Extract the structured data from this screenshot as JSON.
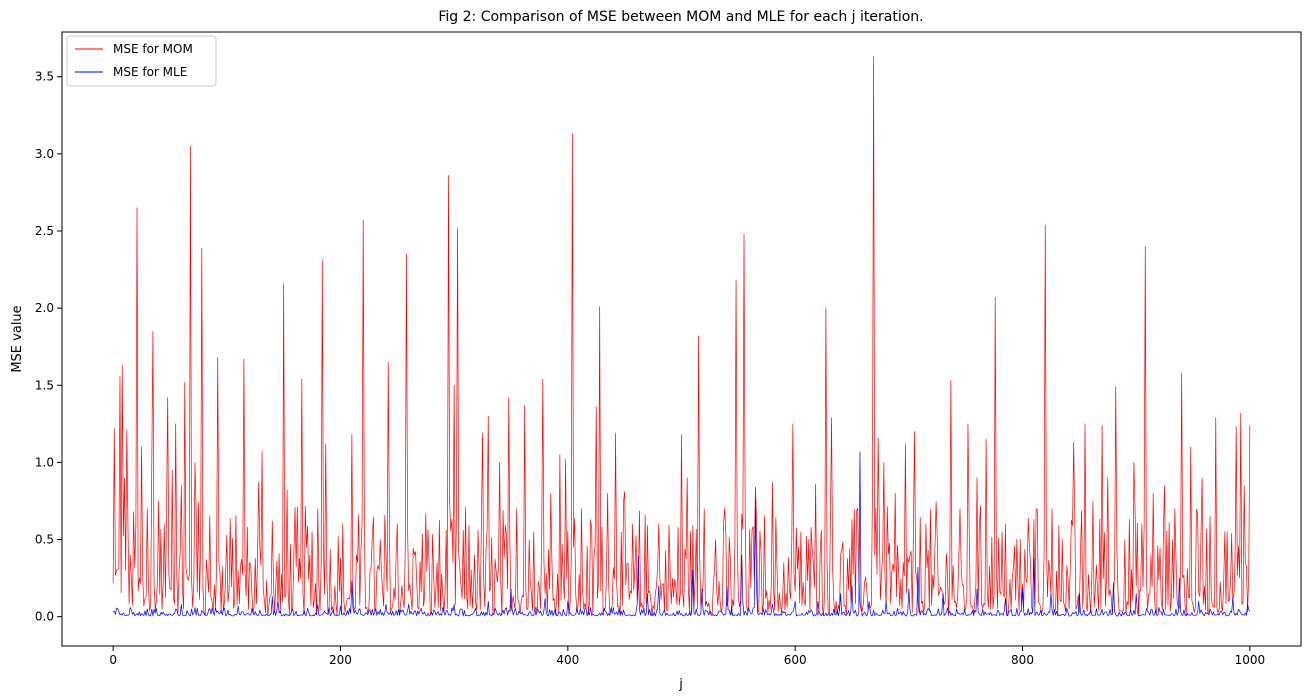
{
  "chart_data": {
    "type": "line",
    "title": "Fig 2: Comparison of MSE between MOM and MLE for each j iteration.",
    "xlabel": "j",
    "ylabel": "MSE value",
    "xlim": [
      -45,
      1045
    ],
    "ylim": [
      -0.19,
      3.79
    ],
    "xticks": [
      0,
      200,
      400,
      600,
      800,
      1000
    ],
    "xtick_labels": [
      "0",
      "200",
      "400",
      "600",
      "800",
      "1000"
    ],
    "yticks": [
      0.0,
      0.5,
      1.0,
      1.5,
      2.0,
      2.5,
      3.0,
      3.5
    ],
    "ytick_labels": [
      "0.0",
      "0.5",
      "1.0",
      "1.5",
      "2.0",
      "2.5",
      "3.0",
      "3.5"
    ],
    "grid": false,
    "legend_position": "top-left",
    "series": [
      {
        "name": "MSE for MOM",
        "color": "#ff0000",
        "baseline": 0.22,
        "peaks": [
          [
            1,
            1.22
          ],
          [
            3,
            0.3
          ],
          [
            6,
            1.56
          ],
          [
            8,
            1.63
          ],
          [
            10,
            0.9
          ],
          [
            12,
            1.21
          ],
          [
            16,
            0.25
          ],
          [
            20,
            0.6
          ],
          [
            21,
            2.65
          ],
          [
            25,
            1.1
          ],
          [
            30,
            0.7
          ],
          [
            34,
            1.0
          ],
          [
            35,
            1.85
          ],
          [
            40,
            0.75
          ],
          [
            45,
            0.6
          ],
          [
            48,
            1.42
          ],
          [
            52,
            0.95
          ],
          [
            55,
            1.25
          ],
          [
            60,
            0.85
          ],
          [
            63,
            1.52
          ],
          [
            68,
            3.05
          ],
          [
            72,
            1.0
          ],
          [
            75,
            0.74
          ],
          [
            78,
            2.39
          ],
          [
            85,
            0.65
          ],
          [
            92,
            1.68
          ],
          [
            100,
            0.53
          ],
          [
            105,
            0.25
          ],
          [
            110,
            0.3
          ],
          [
            115,
            1.67
          ],
          [
            120,
            0.35
          ],
          [
            128,
            0.87
          ],
          [
            131,
            1.07
          ],
          [
            140,
            0.62
          ],
          [
            150,
            2.16
          ],
          [
            153,
            0.82
          ],
          [
            160,
            0.5
          ],
          [
            166,
            1.54
          ],
          [
            170,
            0.45
          ],
          [
            175,
            0.55
          ],
          [
            180,
            0.7
          ],
          [
            184,
            2.31
          ],
          [
            187,
            1.12
          ],
          [
            195,
            0.2
          ],
          [
            210,
            1.18
          ],
          [
            215,
            0.35
          ],
          [
            220,
            2.57
          ],
          [
            226,
            0.3
          ],
          [
            235,
            0.5
          ],
          [
            242,
            1.65
          ],
          [
            250,
            0.6
          ],
          [
            258,
            2.35
          ],
          [
            265,
            0.4
          ],
          [
            275,
            0.67
          ],
          [
            285,
            0.35
          ],
          [
            295,
            2.86
          ],
          [
            300,
            1.5
          ],
          [
            303,
            2.52
          ],
          [
            310,
            0.6
          ],
          [
            318,
            0.4
          ],
          [
            325,
            1.19
          ],
          [
            330,
            1.3
          ],
          [
            340,
            1.0
          ],
          [
            348,
            1.42
          ],
          [
            355,
            0.7
          ],
          [
            362,
            1.37
          ],
          [
            370,
            0.55
          ],
          [
            378,
            1.54
          ],
          [
            385,
            0.8
          ],
          [
            393,
            1.05
          ],
          [
            398,
            1.02
          ],
          [
            404,
            3.13
          ],
          [
            412,
            0.7
          ],
          [
            420,
            0.4
          ],
          [
            425,
            1.36
          ],
          [
            428,
            2.01
          ],
          [
            435,
            0.8
          ],
          [
            442,
            1.19
          ],
          [
            450,
            0.81
          ],
          [
            460,
            0.5
          ],
          [
            470,
            0.42
          ],
          [
            480,
            0.6
          ],
          [
            490,
            0.3
          ],
          [
            500,
            1.18
          ],
          [
            505,
            0.9
          ],
          [
            515,
            1.82
          ],
          [
            520,
            0.7
          ],
          [
            530,
            0.5
          ],
          [
            538,
            0.64
          ],
          [
            548,
            2.18
          ],
          [
            555,
            2.48
          ],
          [
            560,
            0.3
          ],
          [
            565,
            0.84
          ],
          [
            575,
            0.17
          ],
          [
            580,
            0.87
          ],
          [
            590,
            0.35
          ],
          [
            598,
            1.25
          ],
          [
            605,
            0.55
          ],
          [
            612,
            0.5
          ],
          [
            618,
            0.86
          ],
          [
            627,
            2.0
          ],
          [
            632,
            1.29
          ],
          [
            640,
            0.4
          ],
          [
            650,
            0.5
          ],
          [
            669,
            3.63
          ],
          [
            673,
            1.16
          ],
          [
            678,
            1.0
          ],
          [
            688,
            0.8
          ],
          [
            697,
            1.12
          ],
          [
            705,
            1.2
          ],
          [
            715,
            0.6
          ],
          [
            725,
            0.5
          ],
          [
            737,
            1.53
          ],
          [
            745,
            0.7
          ],
          [
            752,
            1.25
          ],
          [
            760,
            0.9
          ],
          [
            768,
            1.15
          ],
          [
            776,
            2.07
          ],
          [
            785,
            0.6
          ],
          [
            795,
            0.5
          ],
          [
            805,
            0.64
          ],
          [
            812,
            0.7
          ],
          [
            820,
            2.54
          ],
          [
            826,
            0.7
          ],
          [
            835,
            0.5
          ],
          [
            845,
            1.13
          ],
          [
            855,
            1.25
          ],
          [
            862,
            0.75
          ],
          [
            870,
            1.24
          ],
          [
            875,
            0.9
          ],
          [
            882,
            1.49
          ],
          [
            890,
            0.5
          ],
          [
            898,
            1.0
          ],
          [
            905,
            0.6
          ],
          [
            908,
            2.4
          ],
          [
            915,
            0.8
          ],
          [
            925,
            0.85
          ],
          [
            932,
            0.5
          ],
          [
            940,
            1.58
          ],
          [
            948,
            1.1
          ],
          [
            958,
            0.9
          ],
          [
            965,
            0.65
          ],
          [
            970,
            1.29
          ],
          [
            980,
            0.55
          ],
          [
            988,
            1.23
          ],
          [
            992,
            1.32
          ],
          [
            995,
            0.85
          ],
          [
            1000,
            1.24
          ]
        ]
      },
      {
        "name": "MSE for MLE",
        "color": "#0000ff",
        "baseline": 0.025,
        "peaks": [
          [
            15,
            0.06
          ],
          [
            30,
            0.05
          ],
          [
            55,
            0.05
          ],
          [
            60,
            0.08
          ],
          [
            90,
            0.06
          ],
          [
            110,
            0.07
          ],
          [
            140,
            0.13
          ],
          [
            145,
            0.1
          ],
          [
            180,
            0.08
          ],
          [
            200,
            0.07
          ],
          [
            210,
            0.23
          ],
          [
            240,
            0.08
          ],
          [
            260,
            0.08
          ],
          [
            290,
            0.06
          ],
          [
            300,
            0.08
          ],
          [
            330,
            0.1
          ],
          [
            350,
            0.18
          ],
          [
            380,
            0.12
          ],
          [
            400,
            0.1
          ],
          [
            420,
            0.06
          ],
          [
            440,
            0.06
          ],
          [
            462,
            0.39
          ],
          [
            470,
            0.15
          ],
          [
            480,
            0.2
          ],
          [
            510,
            0.3
          ],
          [
            518,
            0.18
          ],
          [
            540,
            0.2
          ],
          [
            553,
            0.4
          ],
          [
            565,
            0.76
          ],
          [
            580,
            0.08
          ],
          [
            600,
            0.1
          ],
          [
            620,
            0.1
          ],
          [
            640,
            0.15
          ],
          [
            650,
            0.2
          ],
          [
            657,
            1.07
          ],
          [
            665,
            0.1
          ],
          [
            680,
            0.1
          ],
          [
            700,
            0.18
          ],
          [
            708,
            0.32
          ],
          [
            730,
            0.15
          ],
          [
            760,
            0.18
          ],
          [
            785,
            0.12
          ],
          [
            800,
            0.18
          ],
          [
            810,
            0.38
          ],
          [
            825,
            0.15
          ],
          [
            850,
            0.15
          ],
          [
            880,
            0.22
          ],
          [
            900,
            0.15
          ],
          [
            938,
            0.25
          ],
          [
            955,
            0.1
          ],
          [
            985,
            0.12
          ],
          [
            998,
            0.08
          ]
        ]
      }
    ]
  }
}
